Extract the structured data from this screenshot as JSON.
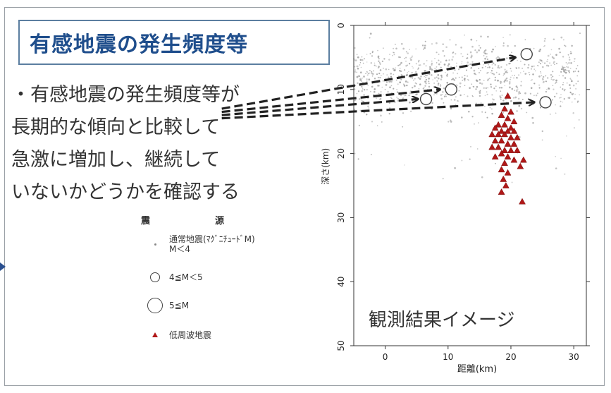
{
  "title": "有感地震の発生頻度等",
  "body_lines": [
    "・有感地震の発生頻度等が",
    "長期的な傾向と比較して",
    "急激に増加し、継続して",
    "いないかどうかを確認する"
  ],
  "legend": {
    "header_left": "震",
    "header_right": "源",
    "items": [
      {
        "symbol": "dot",
        "label_line1": "通常地震(ﾏｸﾞﾆﾁｭｰﾄﾞM)",
        "label_line2": "M＜4"
      },
      {
        "symbol": "circle-medium",
        "label_line1": "4≦M＜5",
        "label_line2": ""
      },
      {
        "symbol": "circle-large",
        "label_line1": "5≦M",
        "label_line2": ""
      },
      {
        "symbol": "triangle",
        "label_line1": "低周波地震",
        "label_line2": ""
      }
    ]
  },
  "chart_data": {
    "type": "scatter",
    "title": "",
    "annotation": "観測結果イメージ",
    "xlabel": "距離(km)",
    "ylabel": "深さ(km)",
    "xlim": [
      -5,
      32
    ],
    "ylim": [
      50,
      0
    ],
    "y_inverted": true,
    "x_ticks": [
      "0",
      "10",
      "20",
      "30"
    ],
    "x_tick_values": [
      0,
      10,
      20,
      30
    ],
    "y_ticks": [
      "0",
      "10",
      "20",
      "30",
      "40",
      "50"
    ],
    "y_tick_values": [
      0,
      10,
      20,
      30,
      40,
      50
    ],
    "grid": false,
    "colors": {
      "normal": "#9a9a9a",
      "low_freq": "#b01818",
      "arrow": "#222222",
      "big": "#ffffff"
    },
    "normal_quake_cloud": {
      "x_range": [
        -5,
        31
      ],
      "depth_center": 8,
      "depth_spread": 5,
      "count": 900
    },
    "big_quakes": [
      {
        "x": 6.5,
        "y": 11.5,
        "size": "medium"
      },
      {
        "x": 10.5,
        "y": 10.0,
        "size": "medium"
      },
      {
        "x": 22.5,
        "y": 4.5,
        "size": "medium"
      },
      {
        "x": 25.5,
        "y": 12.0,
        "size": "medium"
      }
    ],
    "low_freq_quakes": [
      {
        "x": 19.5,
        "y": 11.0
      },
      {
        "x": 19.0,
        "y": 13.0
      },
      {
        "x": 20.0,
        "y": 13.5
      },
      {
        "x": 18.5,
        "y": 14.0
      },
      {
        "x": 19.5,
        "y": 14.5
      },
      {
        "x": 20.5,
        "y": 15.0
      },
      {
        "x": 18.0,
        "y": 15.5
      },
      {
        "x": 19.0,
        "y": 15.5
      },
      {
        "x": 20.0,
        "y": 16.0
      },
      {
        "x": 17.5,
        "y": 16.0
      },
      {
        "x": 18.5,
        "y": 16.5
      },
      {
        "x": 19.5,
        "y": 16.5
      },
      {
        "x": 20.5,
        "y": 16.5
      },
      {
        "x": 17.0,
        "y": 17.0
      },
      {
        "x": 18.0,
        "y": 17.0
      },
      {
        "x": 19.0,
        "y": 17.0
      },
      {
        "x": 20.0,
        "y": 17.5
      },
      {
        "x": 21.0,
        "y": 17.5
      },
      {
        "x": 17.5,
        "y": 18.0
      },
      {
        "x": 18.5,
        "y": 18.0
      },
      {
        "x": 19.5,
        "y": 18.5
      },
      {
        "x": 20.5,
        "y": 18.5
      },
      {
        "x": 17.0,
        "y": 19.0
      },
      {
        "x": 18.0,
        "y": 19.0
      },
      {
        "x": 19.0,
        "y": 19.5
      },
      {
        "x": 20.0,
        "y": 19.5
      },
      {
        "x": 21.0,
        "y": 19.5
      },
      {
        "x": 18.5,
        "y": 20.0
      },
      {
        "x": 19.5,
        "y": 20.5
      },
      {
        "x": 17.5,
        "y": 20.5
      },
      {
        "x": 20.5,
        "y": 21.0
      },
      {
        "x": 19.0,
        "y": 21.5
      },
      {
        "x": 22.0,
        "y": 21.0
      },
      {
        "x": 21.5,
        "y": 22.0
      },
      {
        "x": 18.5,
        "y": 22.5
      },
      {
        "x": 19.5,
        "y": 23.0
      },
      {
        "x": 18.8,
        "y": 24.0
      },
      {
        "x": 19.2,
        "y": 25.0
      },
      {
        "x": 18.5,
        "y": 26.0
      },
      {
        "x": 21.8,
        "y": 27.5
      }
    ],
    "arrows": [
      {
        "from": [
          -26,
          13
        ],
        "to": [
          22,
          5
        ]
      },
      {
        "from": [
          -26,
          13.5
        ],
        "to": [
          10,
          10
        ]
      },
      {
        "from": [
          -26,
          14
        ],
        "to": [
          6.5,
          11.5
        ]
      },
      {
        "from": [
          -26,
          14.5
        ],
        "to": [
          25,
          12
        ]
      }
    ]
  }
}
